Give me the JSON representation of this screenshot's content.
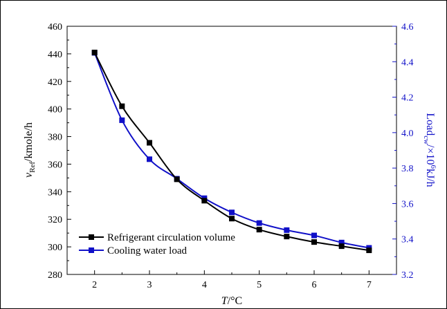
{
  "chart_data": {
    "type": "line",
    "x_label_var": "T",
    "x_label_unit": "/°C",
    "y_label_var": "v",
    "y_label_sub": "Ref",
    "y_label_unit": "/kmole/h",
    "y2_label_var": "Load",
    "y2_label_sub": "cw",
    "y2_label_mid": "/×10",
    "y2_label_sup": "6",
    "y2_label_unit": "kJ/h",
    "xlim": [
      1.5,
      7.5
    ],
    "ylim": [
      280,
      460
    ],
    "y2lim": [
      3.2,
      4.6
    ],
    "x_ticks": [
      "2",
      "3",
      "4",
      "5",
      "6",
      "7"
    ],
    "y_ticks": [
      "280",
      "300",
      "320",
      "340",
      "360",
      "380",
      "400",
      "420",
      "440",
      "460"
    ],
    "y2_ticks": [
      "3.2",
      "3.4",
      "3.6",
      "3.8",
      "4.0",
      "4.2",
      "4.4",
      "4.6"
    ],
    "grid": false,
    "legend_position": "bottom-left",
    "x": [
      2,
      2.5,
      3,
      3.5,
      4,
      4.5,
      5,
      5.5,
      6,
      6.5,
      7
    ],
    "series": [
      {
        "name": "Refrigerant circulation volume",
        "axis": "left",
        "color": "#000000",
        "values": [
          441,
          402,
          375.5,
          349,
          333.5,
          320.5,
          312.5,
          307.5,
          303.5,
          300.5,
          297.5
        ]
      },
      {
        "name": "Cooling water load",
        "axis": "right",
        "color": "#1010c8",
        "values": [
          4.45,
          4.07,
          3.85,
          3.74,
          3.63,
          3.55,
          3.49,
          3.45,
          3.42,
          3.38,
          3.35
        ]
      }
    ]
  }
}
